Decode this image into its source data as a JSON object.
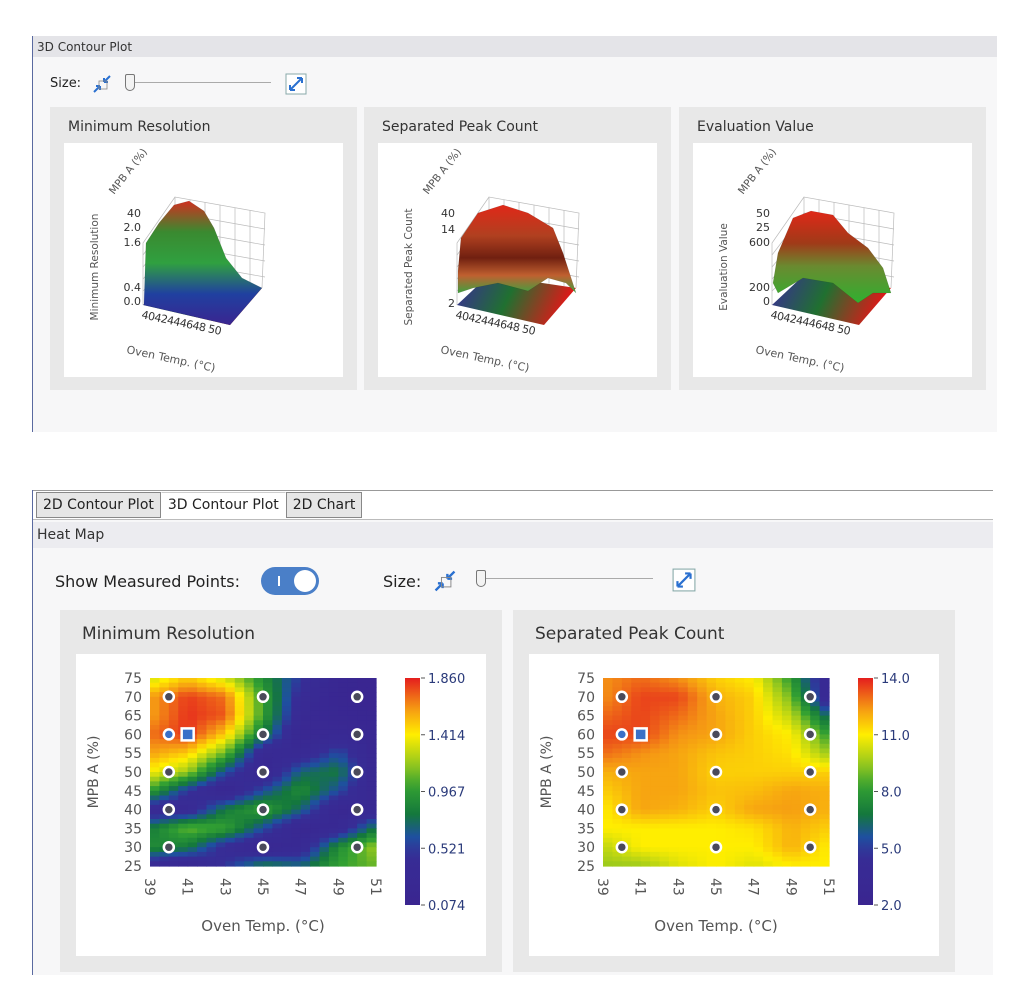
{
  "top": {
    "header": "3D Contour Plot",
    "size_label": "Size:",
    "charts": [
      {
        "title": "Minimum Resolution",
        "zlabel": "Minimum Resolution",
        "ylabel": "MPB A (%)",
        "xlabel": "Oven Temp. (°C)",
        "xticks": "4042444648 50",
        "zticks": [
          "40",
          "2.0",
          "1.6",
          "0.4",
          "0.0"
        ],
        "surface": "res"
      },
      {
        "title": "Separated Peak Count",
        "zlabel": "Separated Peak Count",
        "ylabel": "MPB A (%)",
        "xlabel": "Oven Temp. (°C)",
        "xticks": "4042444648 50",
        "zticks": [
          "40",
          "14",
          "2"
        ],
        "surface": "peak"
      },
      {
        "title": "Evaluation Value",
        "zlabel": "Evaluation Value",
        "ylabel": "MPB A (%)",
        "xlabel": "Oven Temp. (°C)",
        "xticks": "4042444648 50",
        "zticks": [
          "50",
          "25",
          "600",
          "200",
          "0"
        ],
        "surface": "eval"
      }
    ]
  },
  "tabs": [
    {
      "label": "2D Contour Plot"
    },
    {
      "label": "3D Contour Plot",
      "selected": true
    },
    {
      "label": "2D Chart"
    }
  ],
  "bottom": {
    "header": "Heat Map",
    "show_points_label": "Show Measured Points:",
    "show_points_on": true,
    "size_label": "Size:"
  },
  "chart_data": [
    {
      "type": "heatmap",
      "title": "Minimum Resolution",
      "xlabel": "Oven Temp. (°C)",
      "ylabel": "MPB A (%)",
      "xlim": [
        39,
        51
      ],
      "ylim": [
        25,
        75
      ],
      "xticks": [
        "39",
        "41",
        "43",
        "45",
        "47",
        "49",
        "51"
      ],
      "yticks": [
        "75",
        "70",
        "65",
        "60",
        "55",
        "50",
        "45",
        "40",
        "35",
        "30",
        "25"
      ],
      "colorbar": {
        "ticks": [
          "1.860",
          "1.414",
          "0.967",
          "0.521",
          "0.074"
        ],
        "min": 0.074,
        "max": 1.86
      },
      "grid_x": [
        39,
        41,
        43,
        45,
        47,
        49,
        51
      ],
      "grid_y": [
        75,
        70,
        65,
        60,
        55,
        50,
        45,
        40,
        35,
        30,
        25
      ],
      "z": [
        [
          1.3,
          1.5,
          1.3,
          0.9,
          0.5,
          0.2,
          0.1
        ],
        [
          1.6,
          1.8,
          1.7,
          1.0,
          0.4,
          0.15,
          0.1
        ],
        [
          1.6,
          1.82,
          1.75,
          1.0,
          0.3,
          0.2,
          0.15
        ],
        [
          1.7,
          1.82,
          1.5,
          0.8,
          0.2,
          0.3,
          0.2
        ],
        [
          1.6,
          1.5,
          1.1,
          0.3,
          0.3,
          0.6,
          0.2
        ],
        [
          1.4,
          1.2,
          0.6,
          0.2,
          0.7,
          0.8,
          0.2
        ],
        [
          1.0,
          0.5,
          0.2,
          0.6,
          0.9,
          0.6,
          0.2
        ],
        [
          0.3,
          0.3,
          0.8,
          1.0,
          0.7,
          0.2,
          0.3
        ],
        [
          0.8,
          1.1,
          1.0,
          0.6,
          0.2,
          0.3,
          0.8
        ],
        [
          0.9,
          0.8,
          0.4,
          0.2,
          0.3,
          0.9,
          1.2
        ],
        [
          0.3,
          0.2,
          0.5,
          0.8,
          0.7,
          1.0,
          1.1
        ]
      ],
      "measured_points": [
        [
          40,
          70
        ],
        [
          45,
          70
        ],
        [
          50,
          70
        ],
        [
          40,
          60
        ],
        [
          45,
          60
        ],
        [
          50,
          60
        ],
        [
          40,
          50
        ],
        [
          45,
          50
        ],
        [
          50,
          50
        ],
        [
          40,
          40
        ],
        [
          45,
          40
        ],
        [
          50,
          40
        ],
        [
          40,
          30
        ],
        [
          45,
          30
        ],
        [
          50,
          30
        ]
      ],
      "selected_point": [
        40,
        60
      ],
      "optimum_point": [
        41,
        60
      ]
    },
    {
      "type": "heatmap",
      "title": "Separated Peak Count",
      "xlabel": "Oven Temp. (°C)",
      "ylabel": "MPB A (%)",
      "xlim": [
        39,
        51
      ],
      "ylim": [
        25,
        75
      ],
      "xticks": [
        "39",
        "41",
        "43",
        "45",
        "47",
        "49",
        "51"
      ],
      "yticks": [
        "75",
        "70",
        "65",
        "60",
        "55",
        "50",
        "45",
        "40",
        "35",
        "30",
        "25"
      ],
      "colorbar": {
        "ticks": [
          "14.0",
          "11.0",
          "8.0",
          "5.0",
          "2.0"
        ],
        "min": 2,
        "max": 14
      },
      "grid_x": [
        39,
        41,
        43,
        45,
        47,
        49,
        51
      ],
      "grid_y": [
        75,
        70,
        65,
        60,
        55,
        50,
        45,
        40,
        35,
        30,
        25
      ],
      "z": [
        [
          12.5,
          13.0,
          12.5,
          11.5,
          11.0,
          8.0,
          3.0
        ],
        [
          12.5,
          13.5,
          13.5,
          12.0,
          11.5,
          9.0,
          3.0
        ],
        [
          13.0,
          13.5,
          13.0,
          12.2,
          11.5,
          10.0,
          6.0
        ],
        [
          13.5,
          13.5,
          12.5,
          12.2,
          11.5,
          11.0,
          8.0
        ],
        [
          13.0,
          12.5,
          12.2,
          11.7,
          11.5,
          11.2,
          9.5
        ],
        [
          12.0,
          12.2,
          12.2,
          11.5,
          11.5,
          11.5,
          11.5
        ],
        [
          11.5,
          12.2,
          12.2,
          11.7,
          11.8,
          12.2,
          12.0
        ],
        [
          11.0,
          12.2,
          12.0,
          11.5,
          12.2,
          12.3,
          12.0
        ],
        [
          11.0,
          11.0,
          11.0,
          11.0,
          11.2,
          12.0,
          11.5
        ],
        [
          10.0,
          11.0,
          11.0,
          11.0,
          11.0,
          12.0,
          11.0
        ],
        [
          9.5,
          9.5,
          10.5,
          11.0,
          10.5,
          11.0,
          11.0
        ]
      ],
      "measured_points": [
        [
          40,
          70
        ],
        [
          45,
          70
        ],
        [
          50,
          70
        ],
        [
          40,
          60
        ],
        [
          45,
          60
        ],
        [
          50,
          60
        ],
        [
          40,
          50
        ],
        [
          45,
          50
        ],
        [
          50,
          50
        ],
        [
          40,
          40
        ],
        [
          45,
          40
        ],
        [
          50,
          40
        ],
        [
          40,
          30
        ],
        [
          45,
          30
        ],
        [
          50,
          30
        ]
      ],
      "selected_point": [
        40,
        60
      ],
      "optimum_point": [
        41,
        60
      ]
    }
  ],
  "colors": {
    "accent": "#4a7fc8",
    "point": "#4a4a5a",
    "selected": "#3a70c8"
  }
}
